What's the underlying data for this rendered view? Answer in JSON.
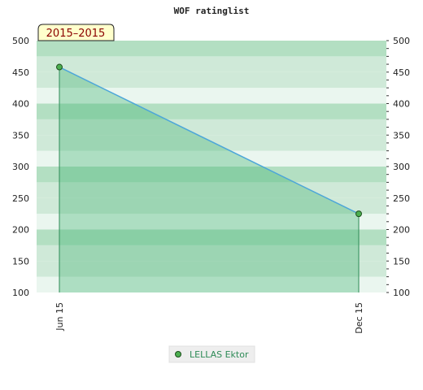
{
  "chart_data": {
    "type": "area",
    "title": "WOF ratinglist",
    "badge": "2015–2015",
    "xlabel": "",
    "ylabel": "",
    "categories": [
      "Jun 15",
      "Dec 15"
    ],
    "series": [
      {
        "name": "LELLAS Ektor",
        "values": [
          458,
          225
        ]
      }
    ],
    "ylim": [
      100,
      500
    ],
    "yticks": [
      100,
      150,
      200,
      250,
      300,
      350,
      400,
      450,
      500
    ],
    "grid": true,
    "legend": "bottom-center",
    "colors": {
      "line": "#4da6d9",
      "fill": "#3cb371",
      "marker": "#4caf50",
      "badge_bg": "#ffffcc",
      "band_dark": "#b3dfc2",
      "band_mid": "#cfe9d8",
      "band_light": "#eaf6ef"
    }
  }
}
